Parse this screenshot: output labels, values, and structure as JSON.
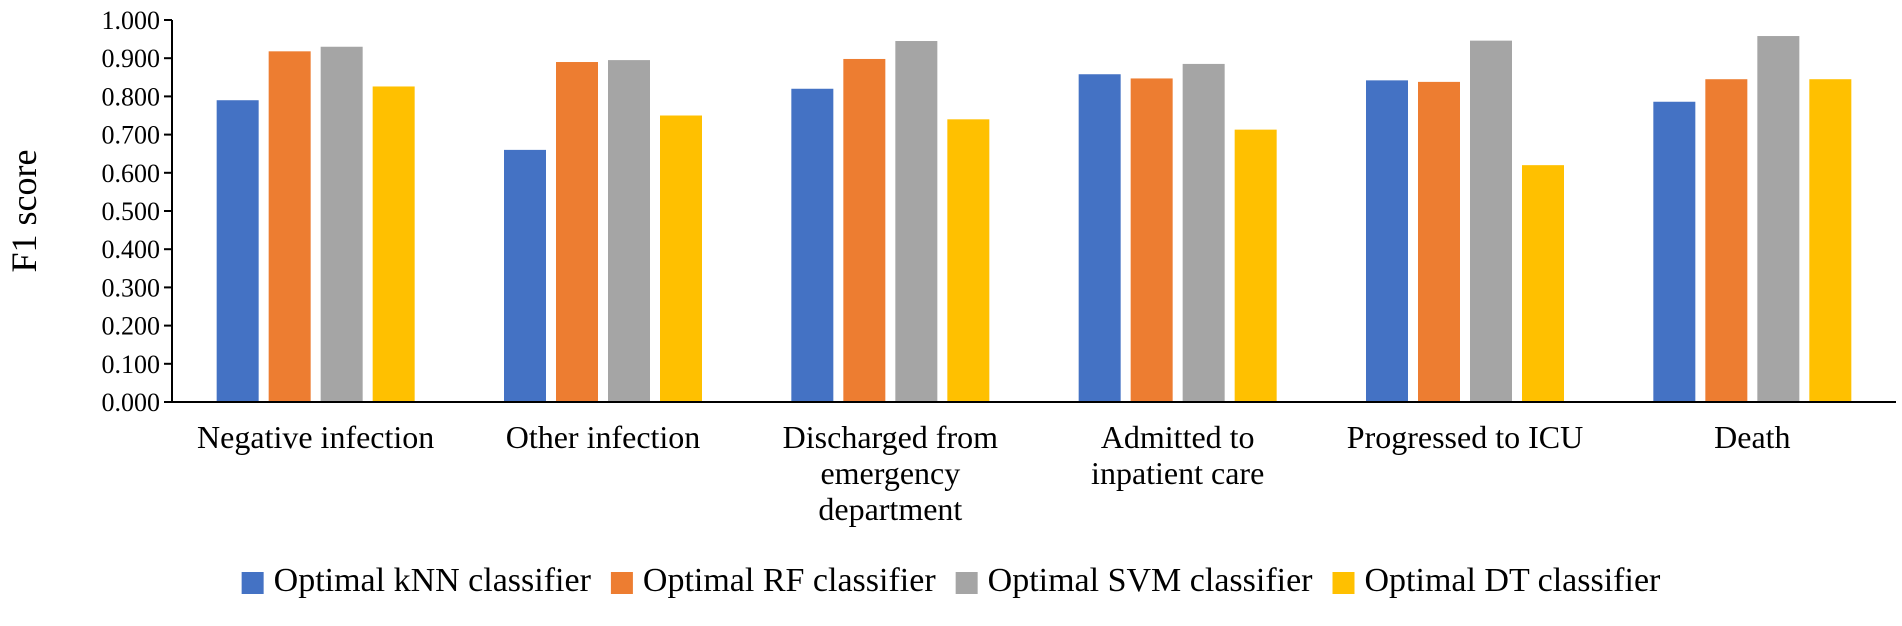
{
  "chart_data": {
    "type": "bar",
    "title": "",
    "xlabel": "",
    "ylabel": "F1 score",
    "ylim": [
      0,
      1
    ],
    "ytick_step": 0.1,
    "ytick_labels": [
      "0.000",
      "0.100",
      "0.200",
      "0.300",
      "0.400",
      "0.500",
      "0.600",
      "0.700",
      "0.800",
      "0.900",
      "1.000"
    ],
    "grid": false,
    "legend_position": "bottom",
    "categories": [
      [
        "Negative infection"
      ],
      [
        "Other infection"
      ],
      [
        "Discharged from",
        "emergency",
        "department"
      ],
      [
        "Admitted to",
        "inpatient care"
      ],
      [
        "Progressed to ICU"
      ],
      [
        "Death"
      ]
    ],
    "series": [
      {
        "name": "Optimal kNN classifier",
        "color": "#4472c4",
        "values": [
          0.79,
          0.66,
          0.82,
          0.858,
          0.842,
          0.786
        ]
      },
      {
        "name": "Optimal RF classifier",
        "color": "#ed7d31",
        "values": [
          0.918,
          0.89,
          0.898,
          0.847,
          0.838,
          0.845
        ]
      },
      {
        "name": "Optimal SVM classifier",
        "color": "#a5a5a5",
        "values": [
          0.93,
          0.895,
          0.945,
          0.885,
          0.946,
          0.958
        ]
      },
      {
        "name": "Optimal DT classifier",
        "color": "#ffc000",
        "values": [
          0.826,
          0.75,
          0.74,
          0.713,
          0.62,
          0.845
        ]
      }
    ]
  }
}
